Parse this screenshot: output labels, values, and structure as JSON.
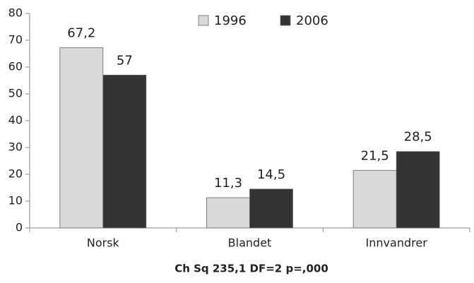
{
  "chart_data": {
    "type": "bar",
    "categories": [
      "Norsk",
      "Blandet",
      "Innvandrer"
    ],
    "series": [
      {
        "name": "1996",
        "color": "#d9d9d9",
        "values": [
          67.2,
          11.3,
          21.5
        ],
        "value_labels": [
          "67,2",
          "11,3",
          "21,5"
        ]
      },
      {
        "name": "2006",
        "color": "#333333",
        "values": [
          57,
          14.5,
          28.5
        ],
        "value_labels": [
          "57",
          "14,5",
          "28,5"
        ]
      }
    ],
    "xlabel": "Ch Sq 235,1 DF=2 p=,000",
    "ylim": [
      0,
      80
    ],
    "yticks": [
      0,
      10,
      20,
      30,
      40,
      50,
      60,
      70,
      80
    ],
    "legend": "top"
  }
}
